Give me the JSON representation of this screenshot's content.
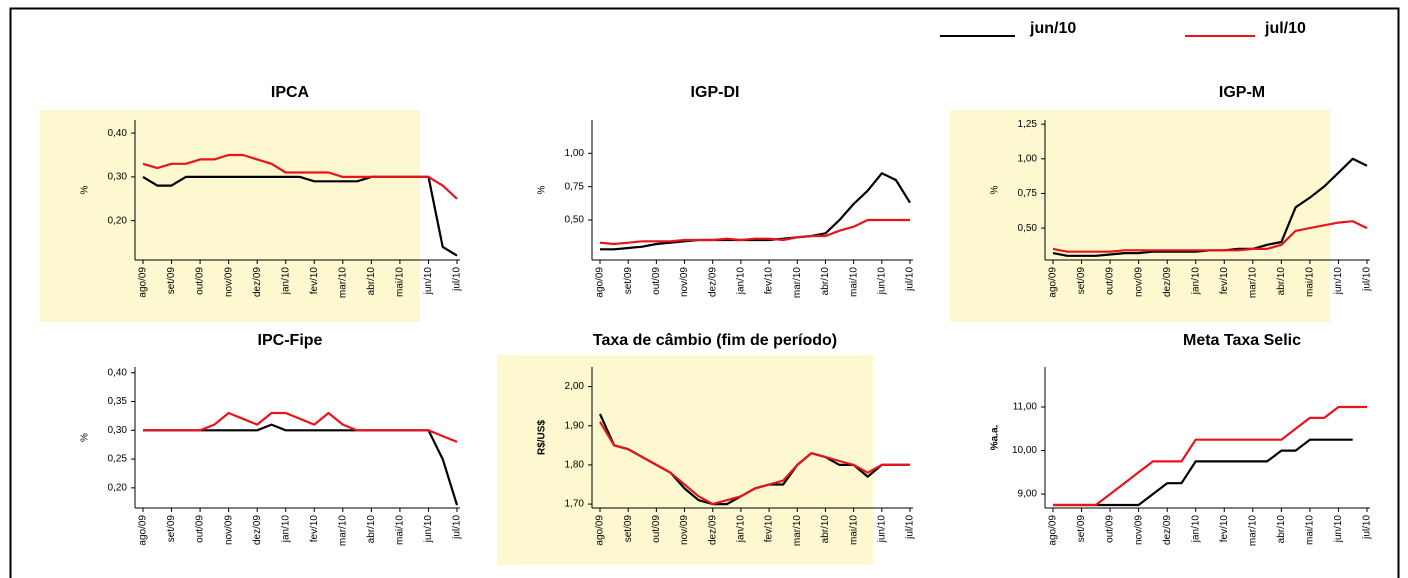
{
  "legend": [
    {
      "name": "jun/10",
      "color": "#000000"
    },
    {
      "name": "jul/10",
      "color": "#e8141c"
    }
  ],
  "chart_data": [
    {
      "type": "line",
      "title": "IPCA",
      "y_label": "%",
      "panel_color": "#fdf8cf",
      "categories": [
        "ago/09",
        null,
        "set/09",
        null,
        "out/09",
        null,
        "nov/09",
        null,
        "dez/09",
        null,
        "jan/10",
        null,
        "fev/10",
        null,
        "mar/10",
        null,
        "abr/10",
        null,
        "mai/10",
        null,
        "jun/10",
        null,
        "jul/10"
      ],
      "series": [
        {
          "color": "#000000",
          "values": [
            0.3,
            0.28,
            0.28,
            0.3,
            0.3,
            0.3,
            0.3,
            0.3,
            0.3,
            0.3,
            0.3,
            0.3,
            0.29,
            0.29,
            0.29,
            0.29,
            0.3,
            0.3,
            0.3,
            0.3,
            0.3,
            0.14,
            0.12
          ]
        },
        {
          "color": "#e8141c",
          "values": [
            0.33,
            0.32,
            0.33,
            0.33,
            0.34,
            0.34,
            0.35,
            0.35,
            0.34,
            0.33,
            0.31,
            0.31,
            0.31,
            0.31,
            0.3,
            0.3,
            0.3,
            0.3,
            0.3,
            0.3,
            0.3,
            0.28,
            0.25
          ]
        }
      ],
      "ylim": [
        0.11,
        0.43
      ],
      "yticks": [
        {
          "value": 0.2,
          "label": "0,20"
        },
        {
          "value": 0.3,
          "label": "0,30"
        },
        {
          "value": 0.4,
          "label": "0,40"
        }
      ]
    },
    {
      "type": "line",
      "title": "IGP-DI",
      "y_label": "%",
      "categories": [
        "ago/09",
        null,
        "set/09",
        null,
        "out/09",
        null,
        "nov/09",
        null,
        "dez/09",
        null,
        "jan/10",
        null,
        "fev/10",
        null,
        "mar/10",
        null,
        "abr/10",
        null,
        "mai/10",
        null,
        "jun/10",
        null,
        "jul/10"
      ],
      "series": [
        {
          "color": "#000000",
          "values": [
            0.28,
            0.28,
            0.29,
            0.3,
            0.32,
            0.33,
            0.34,
            0.35,
            0.35,
            0.35,
            0.35,
            0.35,
            0.35,
            0.36,
            0.37,
            0.38,
            0.4,
            0.5,
            0.62,
            0.72,
            0.85,
            0.8,
            0.63
          ]
        },
        {
          "color": "#e8141c",
          "values": [
            0.33,
            0.32,
            0.33,
            0.34,
            0.34,
            0.34,
            0.35,
            0.35,
            0.35,
            0.36,
            0.35,
            0.36,
            0.36,
            0.35,
            0.37,
            0.38,
            0.38,
            0.42,
            0.45,
            0.5,
            0.5,
            0.5,
            0.5
          ]
        }
      ],
      "ylim": [
        0.2,
        1.25
      ],
      "yticks": [
        {
          "value": 0.5,
          "label": "0,50"
        },
        {
          "value": 0.75,
          "label": "0,75"
        },
        {
          "value": 1,
          "label": "1,00"
        }
      ]
    },
    {
      "type": "line",
      "title": "IGP-M",
      "y_label": "%",
      "panel_color": "#fdf8cf",
      "categories": [
        "ago/09",
        null,
        "set/09",
        null,
        "out/09",
        null,
        "nov/09",
        null,
        "dez/09",
        null,
        "jan/10",
        null,
        "fev/10",
        null,
        "mar/10",
        null,
        "abr/10",
        null,
        "mai/10",
        null,
        "jun/10",
        null,
        "jul/10"
      ],
      "series": [
        {
          "color": "#000000",
          "values": [
            0.32,
            0.3,
            0.3,
            0.3,
            0.31,
            0.32,
            0.32,
            0.33,
            0.33,
            0.33,
            0.33,
            0.34,
            0.34,
            0.35,
            0.35,
            0.38,
            0.4,
            0.65,
            0.72,
            0.8,
            0.9,
            1.0,
            0.95
          ]
        },
        {
          "color": "#e8141c",
          "values": [
            0.35,
            0.33,
            0.33,
            0.33,
            0.33,
            0.34,
            0.34,
            0.34,
            0.34,
            0.34,
            0.34,
            0.34,
            0.34,
            0.34,
            0.35,
            0.35,
            0.38,
            0.48,
            0.5,
            0.52,
            0.54,
            0.55,
            0.5
          ]
        }
      ],
      "ylim": [
        0.27,
        1.28
      ],
      "yticks": [
        {
          "value": 0.5,
          "label": "0,50"
        },
        {
          "value": 0.75,
          "label": "0,75"
        },
        {
          "value": 1,
          "label": "1,00"
        },
        {
          "value": 1.25,
          "label": "1,25"
        }
      ]
    },
    {
      "type": "line",
      "title": "IPC-Fipe",
      "y_label": "%",
      "categories": [
        "ago/09",
        null,
        "set/09",
        null,
        "out/09",
        null,
        "nov/09",
        null,
        "dez/09",
        null,
        "jan/10",
        null,
        "fev/10",
        null,
        "mar/10",
        null,
        "abr/10",
        null,
        "mai/10",
        null,
        "jun/10",
        null,
        "jul/10"
      ],
      "series": [
        {
          "color": "#000000",
          "values": [
            0.3,
            0.3,
            0.3,
            0.3,
            0.3,
            0.3,
            0.3,
            0.3,
            0.3,
            0.31,
            0.3,
            0.3,
            0.3,
            0.3,
            0.3,
            0.3,
            0.3,
            0.3,
            0.3,
            0.3,
            0.3,
            0.25,
            0.17
          ]
        },
        {
          "color": "#e8141c",
          "values": [
            0.3,
            0.3,
            0.3,
            0.3,
            0.3,
            0.31,
            0.33,
            0.32,
            0.31,
            0.33,
            0.33,
            0.32,
            0.31,
            0.33,
            0.31,
            0.3,
            0.3,
            0.3,
            0.3,
            0.3,
            0.3,
            0.29,
            0.28
          ]
        }
      ],
      "ylim": [
        0.165,
        0.41
      ],
      "yticks": [
        {
          "value": 0.2,
          "label": "0,20"
        },
        {
          "value": 0.25,
          "label": "0,25"
        },
        {
          "value": 0.3,
          "label": "0,30"
        },
        {
          "value": 0.35,
          "label": "0,35"
        },
        {
          "value": 0.4,
          "label": "0,40"
        }
      ]
    },
    {
      "type": "line",
      "title": "Taxa de câmbio (fim de período)",
      "y_label": "R$/US$",
      "panel_color": "#fdf8cf",
      "categories": [
        "ago/09",
        null,
        "set/09",
        null,
        "out/09",
        null,
        "nov/09",
        null,
        "dez/09",
        null,
        "jan/10",
        null,
        "fev/10",
        null,
        "mar/10",
        null,
        "abr/10",
        null,
        "mai/10",
        null,
        "jun/10",
        null,
        "jul/10"
      ],
      "series": [
        {
          "color": "#000000",
          "values": [
            1.93,
            1.85,
            1.84,
            1.82,
            1.8,
            1.78,
            1.74,
            1.71,
            1.7,
            1.7,
            1.72,
            1.74,
            1.75,
            1.75,
            1.8,
            1.83,
            1.82,
            1.8,
            1.8,
            1.77,
            1.8,
            1.8,
            1.8
          ]
        },
        {
          "color": "#e8141c",
          "values": [
            1.91,
            1.85,
            1.84,
            1.82,
            1.8,
            1.78,
            1.75,
            1.72,
            1.7,
            1.71,
            1.72,
            1.74,
            1.75,
            1.76,
            1.8,
            1.83,
            1.82,
            1.81,
            1.8,
            1.78,
            1.8,
            1.8,
            1.8
          ]
        }
      ],
      "ylim": [
        1.69,
        2.05
      ],
      "yticks": [
        {
          "value": 1.7,
          "label": "1,70"
        },
        {
          "value": 1.8,
          "label": "1,80"
        },
        {
          "value": 1.9,
          "label": "1,90"
        },
        {
          "value": 2,
          "label": "2,00"
        }
      ]
    },
    {
      "type": "line",
      "title": "Meta Taxa Selic",
      "y_label": "%a.a.",
      "categories": [
        "ago/09",
        null,
        "set/09",
        null,
        "out/09",
        null,
        "nov/09",
        null,
        "dez/09",
        null,
        "jan/10",
        null,
        "fev/10",
        null,
        "mar/10",
        null,
        "abr/10",
        null,
        "mai/10",
        null,
        "jun/10",
        null,
        "jul/10"
      ],
      "series": [
        {
          "color": "#000000",
          "values": [
            8.75,
            8.75,
            8.75,
            8.75,
            8.75,
            8.75,
            8.75,
            9.0,
            9.25,
            9.25,
            9.75,
            9.75,
            9.75,
            9.75,
            9.75,
            9.75,
            10.0,
            10.0,
            10.25,
            10.25,
            10.25,
            10.25,
            null
          ]
        },
        {
          "color": "#e8141c",
          "values": [
            8.75,
            8.75,
            8.75,
            8.75,
            9.0,
            9.25,
            9.5,
            9.75,
            9.75,
            9.75,
            10.25,
            10.25,
            10.25,
            10.25,
            10.25,
            10.25,
            10.25,
            10.5,
            10.75,
            10.75,
            11.0,
            11.0,
            11.0
          ]
        }
      ],
      "ylim": [
        8.68,
        11.92
      ],
      "yticks": [
        {
          "value": 9,
          "label": "9,00"
        },
        {
          "value": 10,
          "label": "10,00"
        },
        {
          "value": 11,
          "label": "11,00"
        }
      ]
    }
  ]
}
